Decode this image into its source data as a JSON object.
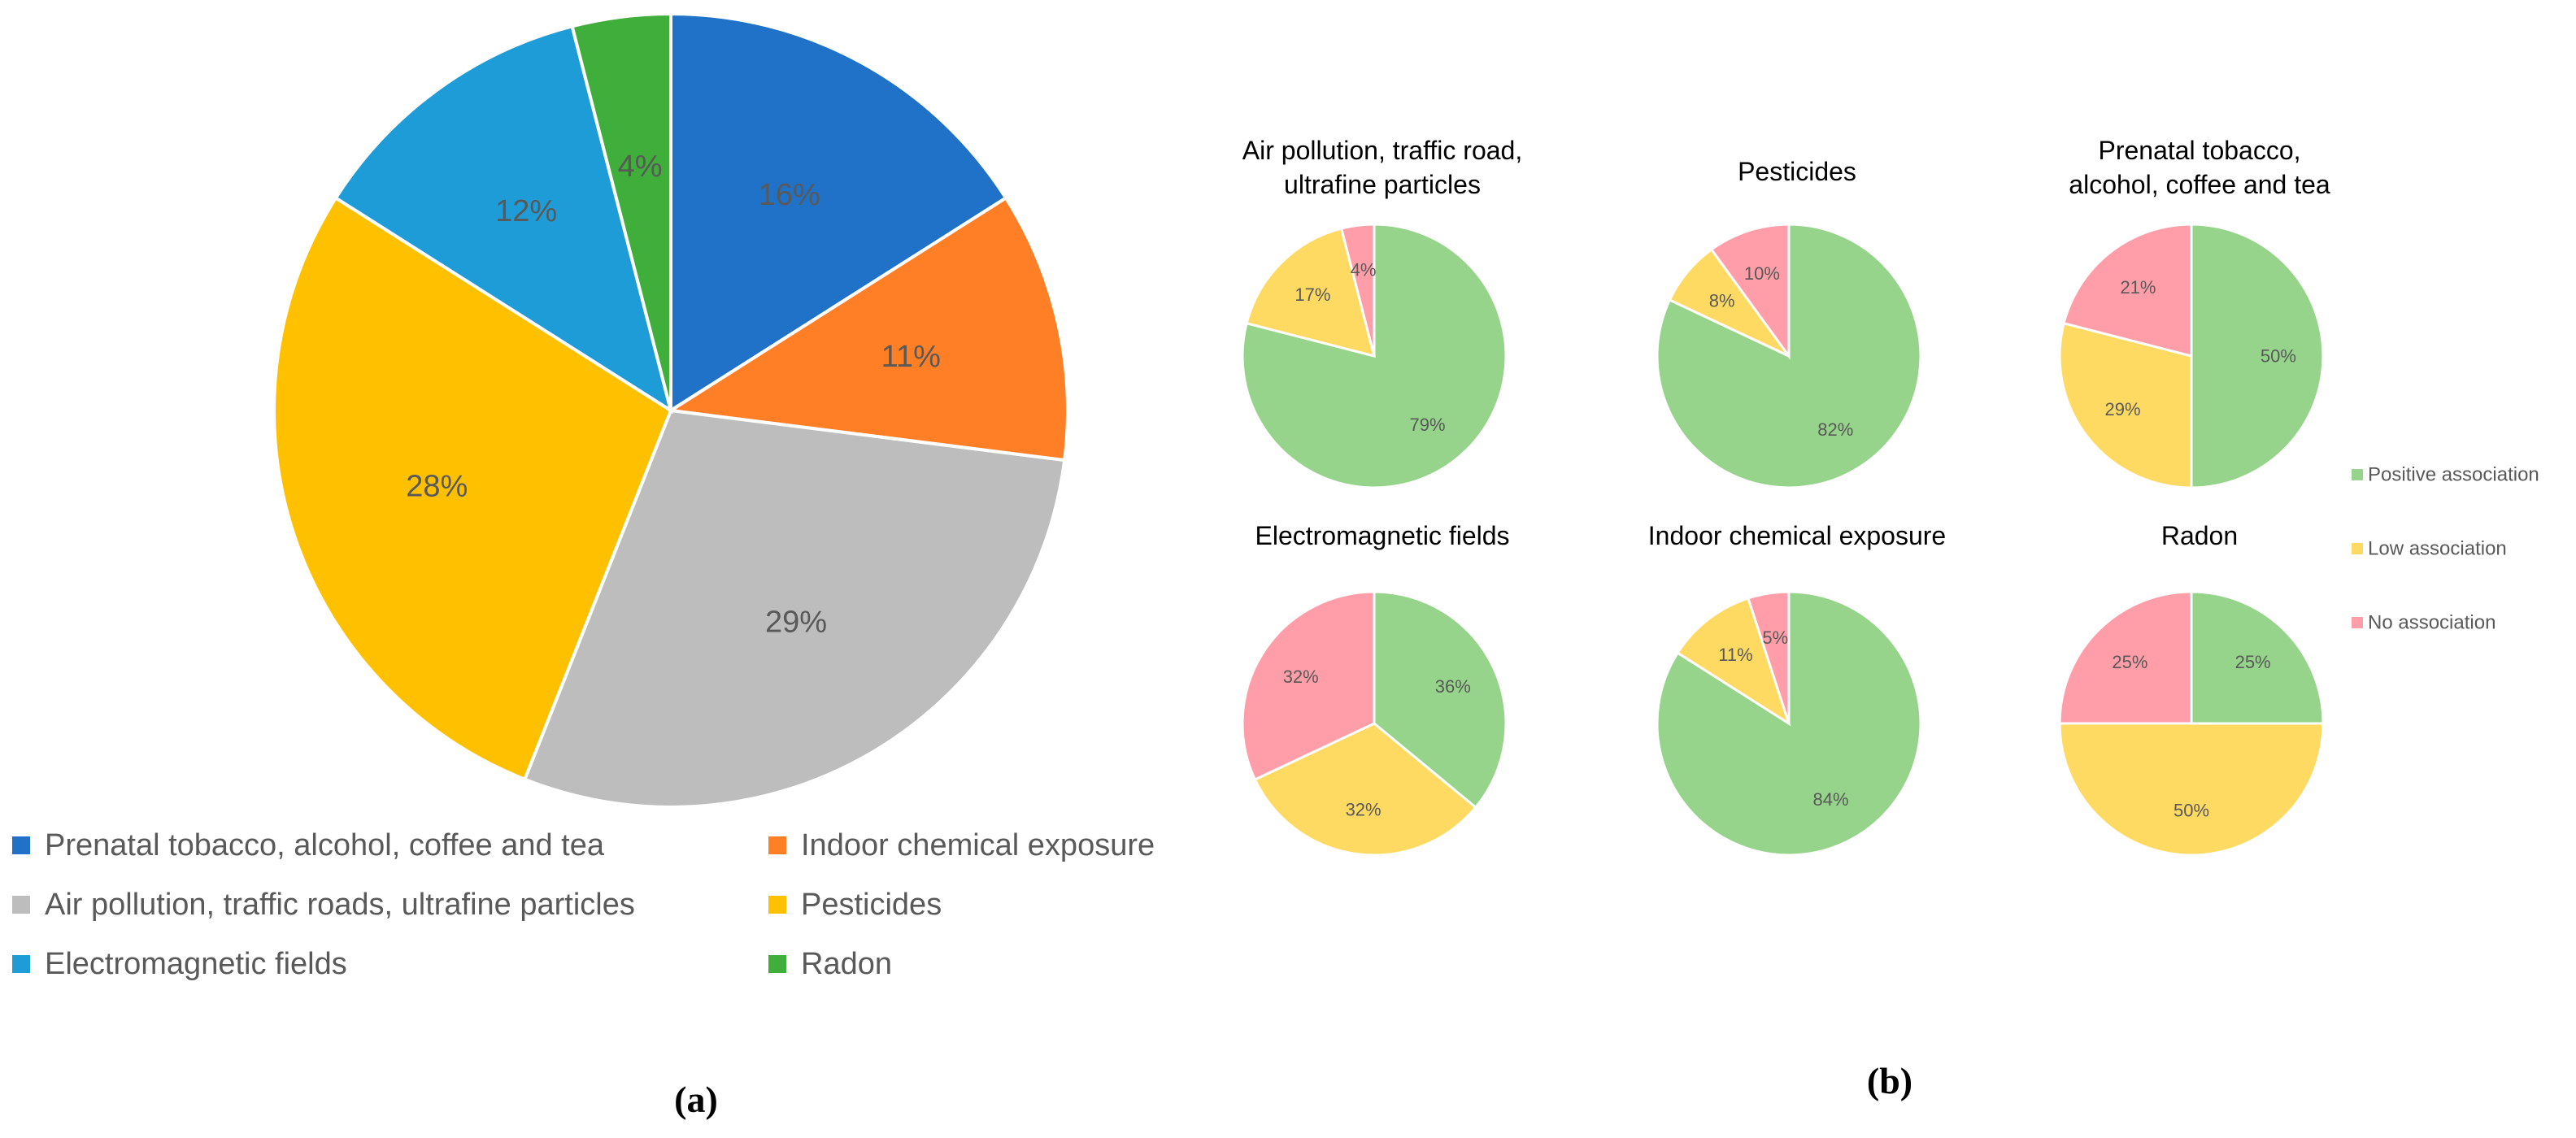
{
  "chart_data": [
    {
      "type": "pie",
      "panel": "(a)",
      "categories": [
        "Prenatal tobacco, alcohol, coffee and tea",
        "Indoor chemical exposure",
        "Air pollution, traffic roads, ultrafine particles",
        "Pesticides",
        "Electromagnetic fields",
        "Radon"
      ],
      "values": [
        16,
        11,
        29,
        28,
        12,
        4
      ],
      "labels": [
        "16%",
        "11%",
        "29%",
        "28%",
        "12%",
        "4%"
      ],
      "colors": [
        "#1F72C8",
        "#FF7F27",
        "#BDBDBD",
        "#FFC000",
        "#1E9CD8",
        "#3FAE3A"
      ],
      "legend_position": "bottom"
    },
    {
      "type": "pie",
      "panel": "(b)",
      "series_names": [
        "Positive association",
        "Low association",
        "No association"
      ],
      "colors": [
        "#95D48A",
        "#FFDA63",
        "#FF9EA8"
      ],
      "legend_position": "right",
      "charts": [
        {
          "title_lines": [
            "Air pollution, traffic road,",
            "ultrafine particles"
          ],
          "values": [
            79,
            17,
            4
          ],
          "labels": [
            "79%",
            "17%",
            "4%"
          ]
        },
        {
          "title_lines": [
            "Pesticides"
          ],
          "values": [
            82,
            8,
            10
          ],
          "labels": [
            "82%",
            "8%",
            "10%"
          ]
        },
        {
          "title_lines": [
            "Prenatal tobacco,",
            "alcohol, coffee and tea"
          ],
          "values": [
            50,
            29,
            21
          ],
          "labels": [
            "50%",
            "29%",
            "21%"
          ]
        },
        {
          "title_lines": [
            "Electromagnetic fields"
          ],
          "values": [
            36,
            32,
            32
          ],
          "labels": [
            "36%",
            "32%",
            "32%"
          ]
        },
        {
          "title_lines": [
            "Indoor chemical exposure"
          ],
          "values": [
            84,
            11,
            5
          ],
          "labels": [
            "84%",
            "11%",
            "5%"
          ]
        },
        {
          "title_lines": [
            "Radon"
          ],
          "values": [
            25,
            50,
            25
          ],
          "labels": [
            "25%",
            "50%",
            "25%"
          ]
        }
      ]
    }
  ]
}
